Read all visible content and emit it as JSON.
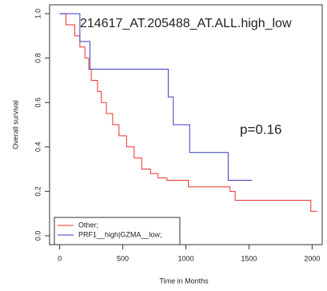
{
  "chart_data": {
    "type": "step",
    "title": "214617_AT.205488_AT.ALL.high_low",
    "annotations": [
      "p=0.16"
    ],
    "x_label": "Time in Months",
    "y_label": "Overall survival",
    "xlim": [
      -80,
      2080
    ],
    "ylim": [
      -0.04,
      1.04
    ],
    "xticks": [
      0,
      500,
      1000,
      1500,
      2000
    ],
    "yticks": [
      {
        "value": 0,
        "label": "0.0"
      },
      {
        "value": 0.2,
        "label": "0.2"
      },
      {
        "value": 0.4,
        "label": "0.4"
      },
      {
        "value": 0.6,
        "label": "0.6"
      },
      {
        "value": 0.8,
        "label": "0.8"
      },
      {
        "value": 1,
        "label": "1.0"
      }
    ],
    "legend": "bottom-left",
    "series": [
      {
        "name": "Other;",
        "color": "#e8322e",
        "x": [
          0,
          50,
          120,
          160,
          200,
          230,
          250,
          300,
          330,
          370,
          420,
          470,
          530,
          590,
          650,
          720,
          780,
          850,
          1020,
          1350,
          1390,
          1990,
          2040
        ],
        "values": [
          1,
          0.95,
          0.9,
          0.85,
          0.8,
          0.75,
          0.7,
          0.65,
          0.6,
          0.55,
          0.5,
          0.45,
          0.4,
          0.35,
          0.3,
          0.28,
          0.26,
          0.25,
          0.22,
          0.2,
          0.16,
          0.11,
          0.11
        ]
      },
      {
        "name": "PRF1__high|GZMA__low;",
        "color": "#3a3ac8",
        "x": [
          0,
          160,
          240,
          860,
          900,
          1030,
          1335,
          1525
        ],
        "values": [
          1,
          0.875,
          0.75,
          0.625,
          0.5,
          0.375,
          0.25,
          0.25
        ]
      }
    ]
  }
}
